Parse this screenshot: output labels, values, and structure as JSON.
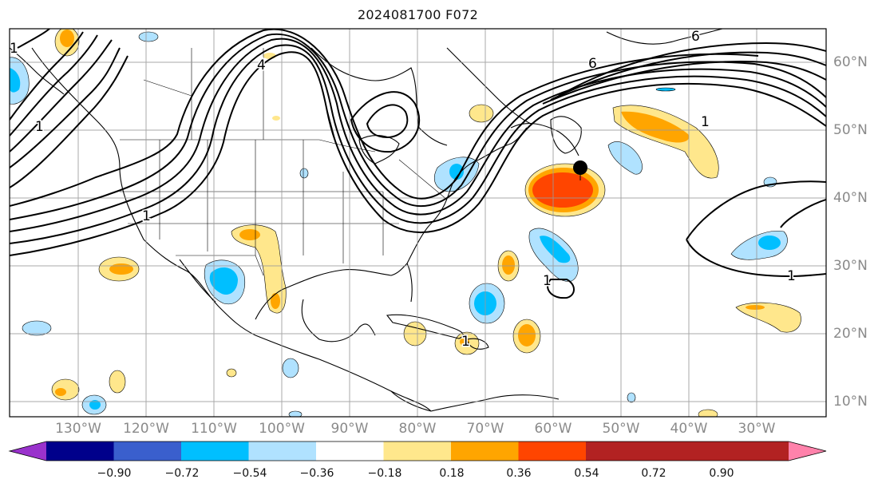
{
  "title": "2024081700 F072",
  "longitude_labels": [
    "130°W",
    "120°W",
    "110°W",
    "100°W",
    "90°W",
    "80°W",
    "70°W",
    "60°W",
    "50°W",
    "40°W",
    "30°W"
  ],
  "latitude_labels": [
    "60°N",
    "50°N",
    "40°N",
    "30°N",
    "20°N",
    "10°N"
  ],
  "contour_labels": [
    "6",
    "6",
    "4",
    "1",
    "1",
    "1",
    "1",
    "1",
    "1",
    "1"
  ],
  "colorbar": {
    "ticks": [
      "−0.90",
      "−0.72",
      "−0.54",
      "−0.36",
      "−0.18",
      "0.18",
      "0.36",
      "0.54",
      "0.72",
      "0.90"
    ],
    "colors": {
      "under": "#9932cc",
      "bins": [
        "#00008b",
        "#3a5fcd",
        "#00bfff",
        "#b0e2ff",
        "#ffffff",
        "#ffe78c",
        "#ffa500",
        "#ff4500",
        "#b22222",
        "#ff82ab"
      ],
      "over": "#ff82ab"
    }
  },
  "marker": {
    "type": "black-dot",
    "color": "#000000"
  },
  "colors": {
    "contour": "#000000",
    "gridline": "#999999",
    "coastline": "#000000",
    "tick_label": "#8a8a8a"
  }
}
